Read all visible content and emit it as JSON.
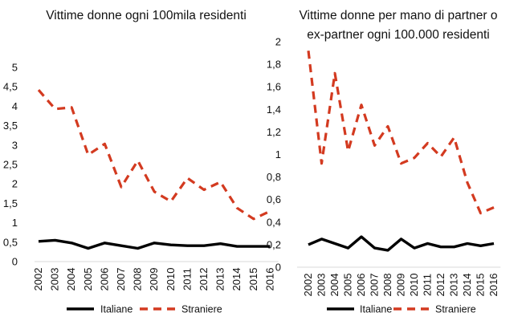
{
  "colors": {
    "italiane": "#000000",
    "straniere": "#d33a20"
  },
  "chart_data": [
    {
      "type": "line",
      "title": "Vittime donne ogni 100mila residenti",
      "categories": [
        "2002",
        "2003",
        "2004",
        "2005",
        "2006",
        "2007",
        "2008",
        "2009",
        "2010",
        "2011",
        "2012",
        "2013",
        "2014",
        "2015",
        "2016"
      ],
      "ylim": [
        0,
        5
      ],
      "yticks": [
        "0",
        "0,5",
        "1",
        "1,5",
        "2",
        "2,5",
        "3",
        "3,5",
        "4",
        "4,5",
        "5"
      ],
      "ytick_values": [
        0,
        0.5,
        1,
        1.5,
        2,
        2.5,
        3,
        3.5,
        4,
        4.5,
        5
      ],
      "series": [
        {
          "name": "Italiane",
          "style": "solid",
          "values": [
            0.52,
            0.55,
            0.48,
            0.34,
            0.48,
            0.41,
            0.34,
            0.48,
            0.43,
            0.41,
            0.41,
            0.46,
            0.39,
            0.39,
            0.39
          ]
        },
        {
          "name": "Straniere",
          "style": "dashed",
          "values": [
            4.42,
            3.93,
            3.97,
            2.75,
            3.03,
            1.92,
            2.6,
            1.8,
            1.55,
            2.15,
            1.85,
            2.05,
            1.38,
            1.1,
            1.3
          ]
        }
      ],
      "legend": "bottom",
      "grid": false
    },
    {
      "type": "line",
      "title": [
        "Vittime donne per mano di partner o",
        "ex-partner ogni 100.000 residenti"
      ],
      "categories": [
        "2002",
        "2003",
        "2004",
        "2005",
        "2006",
        "2007",
        "2008",
        "2009",
        "2010",
        "2011",
        "2012",
        "2013",
        "2014",
        "2015",
        "2016"
      ],
      "ylim": [
        0,
        2
      ],
      "yticks": [
        "0",
        "0,2",
        "0,4",
        "0,6",
        "0,8",
        "1",
        "1,2",
        "1,4",
        "1,6",
        "1,8",
        "2"
      ],
      "ytick_values": [
        0,
        0.2,
        0.4,
        0.6,
        0.8,
        1,
        1.2,
        1.4,
        1.6,
        1.8,
        2
      ],
      "series": [
        {
          "name": "Italiane",
          "style": "solid",
          "values": [
            0.2,
            0.25,
            0.21,
            0.17,
            0.27,
            0.17,
            0.15,
            0.25,
            0.17,
            0.21,
            0.18,
            0.18,
            0.21,
            0.19,
            0.21
          ]
        },
        {
          "name": "Straniere",
          "style": "dashed",
          "values": [
            1.92,
            0.92,
            1.72,
            1.03,
            1.44,
            1.08,
            1.25,
            0.92,
            0.97,
            1.1,
            0.98,
            1.15,
            0.75,
            0.48,
            0.53
          ]
        }
      ],
      "legend": "bottom",
      "grid": false
    }
  ]
}
